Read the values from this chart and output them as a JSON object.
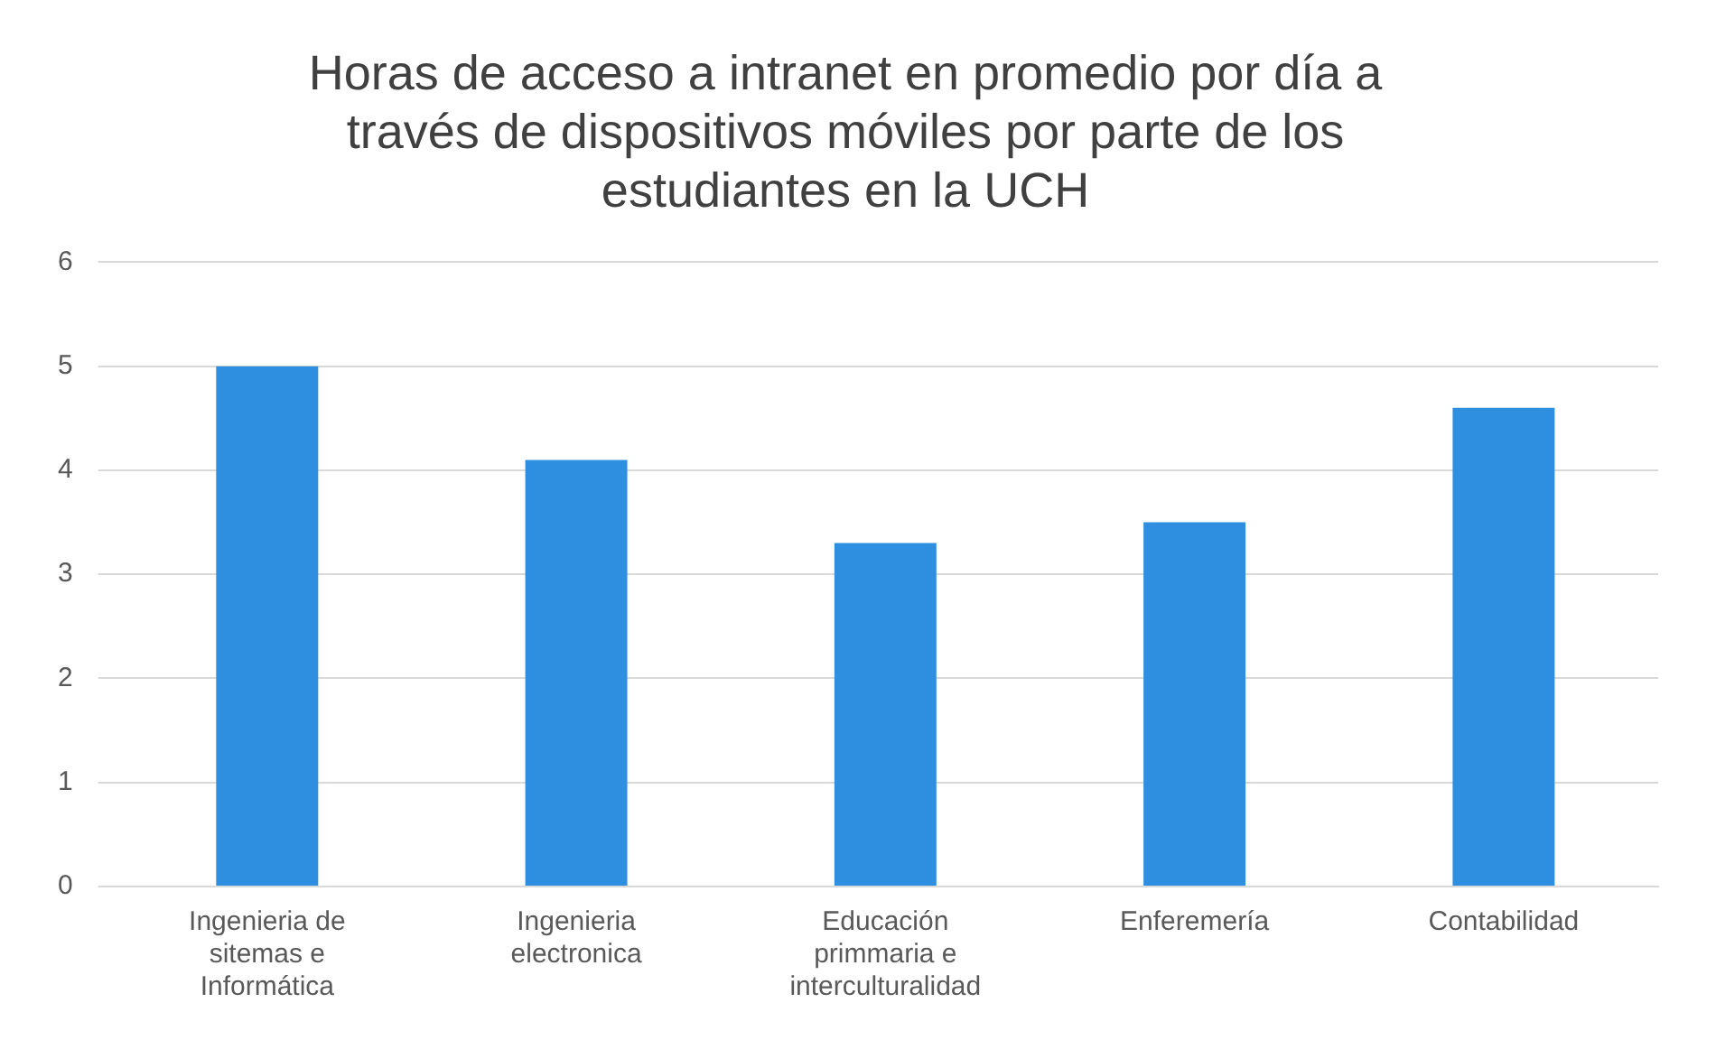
{
  "chart_data": {
    "type": "bar",
    "title": "Horas de acceso a intranet en promedio por día a través de dispositivos móviles por parte de los estudiantes en la UCH",
    "categories": [
      "Ingenieria de sitemas e Informática",
      "Ingenieria electronica",
      "Educación primmaria e interculturalidad",
      "Enferemería",
      "Contabilidad"
    ],
    "values": [
      5,
      4.1,
      3.3,
      3.5,
      4.6
    ],
    "color": "#2e8fe0",
    "ylim": [
      0,
      6
    ],
    "yticks": [
      0,
      1,
      2,
      3,
      4,
      5,
      6
    ],
    "grid": "y",
    "legend": false
  }
}
